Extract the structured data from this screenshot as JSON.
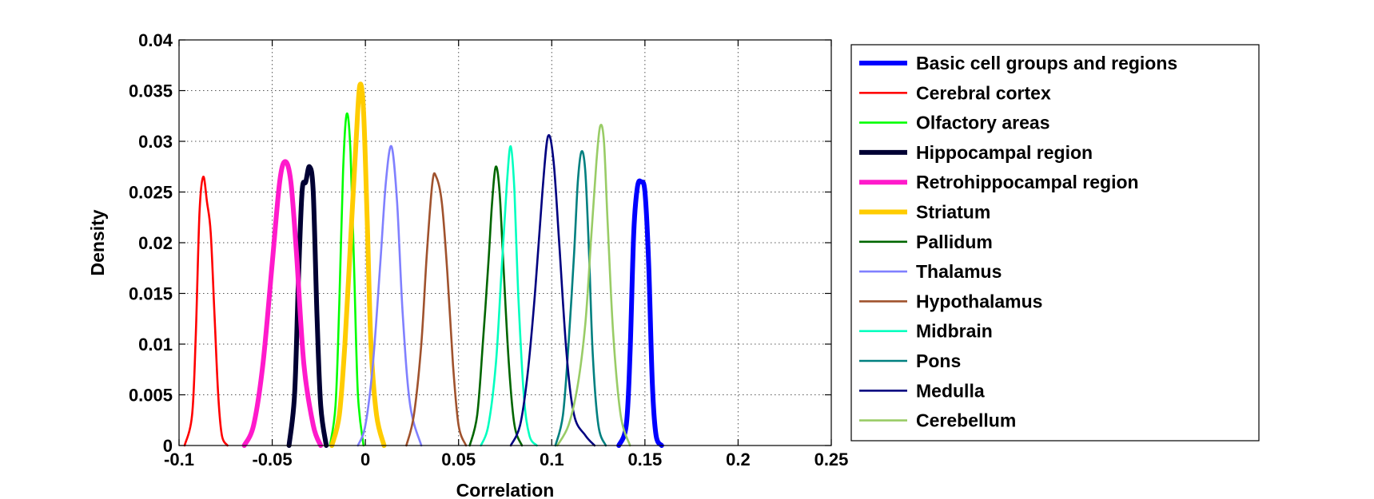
{
  "chart_data": {
    "type": "line",
    "title": "",
    "xlabel": "Correlation",
    "ylabel": "Density",
    "xlim": [
      -0.1,
      0.25
    ],
    "ylim": [
      0,
      0.04
    ],
    "xticks": [
      -0.1,
      -0.05,
      0,
      0.05,
      0.1,
      0.15,
      0.2,
      0.25
    ],
    "xtick_labels": [
      "-0.1",
      "-0.05",
      "0",
      "0.05",
      "0.1",
      "0.15",
      "0.2",
      "0.25"
    ],
    "yticks": [
      0,
      0.005,
      0.01,
      0.015,
      0.02,
      0.025,
      0.03,
      0.035,
      0.04
    ],
    "ytick_labels": [
      "0",
      "0.005",
      "0.01",
      "0.015",
      "0.02",
      "0.025",
      "0.03",
      "0.035",
      "0.04"
    ],
    "grid": true,
    "legend_position": "outside-right",
    "series": [
      {
        "name": "Basic cell groups and regions",
        "color": "#0000ff",
        "bold": true,
        "x": [
          0.136,
          0.14,
          0.142,
          0.144,
          0.146,
          0.148,
          0.15,
          0.152,
          0.154,
          0.156,
          0.159
        ],
        "y": [
          0,
          0.002,
          0.009,
          0.021,
          0.0255,
          0.026,
          0.025,
          0.018,
          0.006,
          0.001,
          0
        ]
      },
      {
        "name": "Cerebral cortex",
        "color": "#ff0000",
        "bold": false,
        "x": [
          -0.097,
          -0.093,
          -0.091,
          -0.089,
          -0.087,
          -0.085,
          -0.083,
          -0.081,
          -0.079,
          -0.077,
          -0.074
        ],
        "y": [
          0,
          0.003,
          0.011,
          0.023,
          0.0265,
          0.024,
          0.021,
          0.013,
          0.005,
          0.001,
          0
        ]
      },
      {
        "name": "Olfactory areas",
        "color": "#00ff00",
        "bold": false,
        "x": [
          -0.019,
          -0.016,
          -0.014,
          -0.012,
          -0.01,
          -0.008,
          -0.006,
          -0.004,
          -0.001
        ],
        "y": [
          0,
          0.004,
          0.014,
          0.027,
          0.0327,
          0.029,
          0.017,
          0.005,
          0
        ]
      },
      {
        "name": "Hippocampal region",
        "color": "#000033",
        "bold": true,
        "x": [
          -0.041,
          -0.038,
          -0.036,
          -0.034,
          -0.032,
          -0.03,
          -0.028,
          -0.026,
          -0.024,
          -0.021
        ],
        "y": [
          0,
          0.005,
          0.016,
          0.025,
          0.026,
          0.0275,
          0.025,
          0.013,
          0.004,
          0
        ]
      },
      {
        "name": "Retrohippocampal region",
        "color": "#ff1acb",
        "bold": true,
        "x": [
          -0.065,
          -0.06,
          -0.055,
          -0.05,
          -0.046,
          -0.043,
          -0.04,
          -0.037,
          -0.033,
          -0.028,
          -0.024
        ],
        "y": [
          0,
          0.002,
          0.008,
          0.018,
          0.026,
          0.028,
          0.026,
          0.019,
          0.008,
          0.002,
          0
        ]
      },
      {
        "name": "Striatum",
        "color": "#ffcc00",
        "bold": true,
        "x": [
          -0.018,
          -0.014,
          -0.011,
          -0.008,
          -0.005,
          -0.003,
          -0.001,
          0.001,
          0.003,
          0.006,
          0.01
        ],
        "y": [
          0,
          0.003,
          0.01,
          0.02,
          0.03,
          0.0355,
          0.033,
          0.022,
          0.01,
          0.003,
          0
        ]
      },
      {
        "name": "Pallidum",
        "color": "#006600",
        "bold": false,
        "x": [
          0.056,
          0.06,
          0.063,
          0.066,
          0.068,
          0.07,
          0.072,
          0.074,
          0.077,
          0.08,
          0.084
        ],
        "y": [
          0,
          0.003,
          0.01,
          0.018,
          0.024,
          0.0275,
          0.025,
          0.018,
          0.008,
          0.002,
          0
        ]
      },
      {
        "name": "Thalamus",
        "color": "#8080ff",
        "bold": false,
        "x": [
          -0.004,
          0.0,
          0.004,
          0.008,
          0.011,
          0.014,
          0.017,
          0.02,
          0.024,
          0.03
        ],
        "y": [
          0,
          0.002,
          0.008,
          0.018,
          0.026,
          0.0295,
          0.024,
          0.013,
          0.004,
          0
        ]
      },
      {
        "name": "Hypothalamus",
        "color": "#a0522d",
        "bold": false,
        "x": [
          0.022,
          0.026,
          0.03,
          0.033,
          0.036,
          0.038,
          0.041,
          0.044,
          0.047,
          0.05,
          0.054
        ],
        "y": [
          0,
          0.003,
          0.01,
          0.019,
          0.026,
          0.0265,
          0.024,
          0.017,
          0.008,
          0.002,
          0
        ]
      },
      {
        "name": "Midbrain",
        "color": "#00ffbf",
        "bold": false,
        "x": [
          0.062,
          0.066,
          0.07,
          0.073,
          0.076,
          0.078,
          0.08,
          0.082,
          0.085,
          0.088,
          0.092
        ],
        "y": [
          0,
          0.002,
          0.008,
          0.017,
          0.026,
          0.0295,
          0.025,
          0.015,
          0.005,
          0.001,
          0
        ]
      },
      {
        "name": "Pons",
        "color": "#008080",
        "bold": false,
        "x": [
          0.102,
          0.106,
          0.109,
          0.112,
          0.114,
          0.116,
          0.118,
          0.12,
          0.122,
          0.125,
          0.129
        ],
        "y": [
          0,
          0.003,
          0.01,
          0.019,
          0.026,
          0.029,
          0.027,
          0.019,
          0.009,
          0.002,
          0
        ]
      },
      {
        "name": "Medulla",
        "color": "#000080",
        "bold": false,
        "x": [
          0.078,
          0.083,
          0.087,
          0.091,
          0.095,
          0.098,
          0.101,
          0.104,
          0.108,
          0.112,
          0.118,
          0.123
        ],
        "y": [
          0,
          0.002,
          0.007,
          0.015,
          0.025,
          0.0305,
          0.028,
          0.02,
          0.009,
          0.003,
          0.001,
          0
        ]
      },
      {
        "name": "Cerebellum",
        "color": "#99cc66",
        "bold": false,
        "x": [
          0.103,
          0.109,
          0.114,
          0.118,
          0.121,
          0.124,
          0.126,
          0.128,
          0.13,
          0.133,
          0.137,
          0.142
        ],
        "y": [
          0,
          0.002,
          0.006,
          0.012,
          0.02,
          0.028,
          0.0315,
          0.03,
          0.022,
          0.011,
          0.003,
          0
        ]
      }
    ]
  }
}
